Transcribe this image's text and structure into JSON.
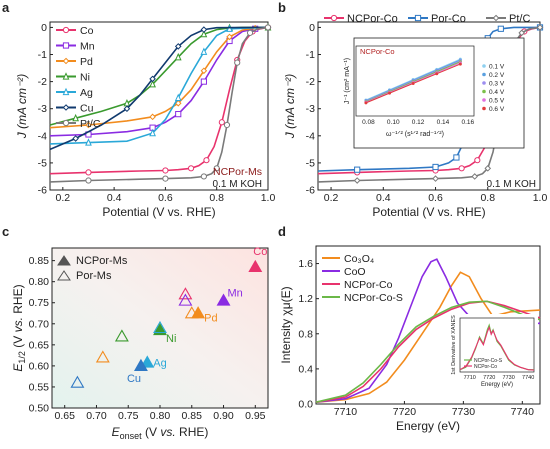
{
  "panel_labels": [
    "a",
    "b",
    "c",
    "d"
  ],
  "chart_data": [
    {
      "panel": "a",
      "type": "line",
      "xlabel": "Potential (V vs. RHE)",
      "ylabel": "J (mA cm⁻²)",
      "xlim": [
        0.15,
        1.0
      ],
      "ylim": [
        -6,
        0.2
      ],
      "xticks": [
        "0.2",
        "0.4",
        "0.6",
        "0.8",
        "1.0"
      ],
      "yticks": [
        "0",
        "-1",
        "-2",
        "-3",
        "-4",
        "-5",
        "-6"
      ],
      "legend_position": "top-left",
      "annotations": [
        "NCPor-Ms",
        "0.1 M KOH"
      ],
      "series": [
        {
          "name": "Co",
          "color": "#e8336d",
          "x": [
            0.15,
            0.3,
            0.5,
            0.6,
            0.65,
            0.7,
            0.73,
            0.76,
            0.79,
            0.82,
            0.85,
            0.88,
            0.91,
            0.94,
            0.97,
            1.0
          ],
          "y": [
            -5.4,
            -5.35,
            -5.3,
            -5.28,
            -5.25,
            -5.2,
            -5.1,
            -4.9,
            -4.4,
            -3.5,
            -2.3,
            -1.2,
            -0.5,
            -0.15,
            -0.05,
            0
          ]
        },
        {
          "name": "Mn",
          "color": "#8a2be2",
          "x": [
            0.15,
            0.3,
            0.45,
            0.55,
            0.6,
            0.65,
            0.7,
            0.75,
            0.8,
            0.85,
            0.9,
            0.95,
            1.0
          ],
          "y": [
            -4.0,
            -3.95,
            -3.85,
            -3.7,
            -3.5,
            -3.2,
            -2.7,
            -2.0,
            -1.2,
            -0.5,
            -0.15,
            -0.05,
            0
          ]
        },
        {
          "name": "Pd",
          "color": "#f28c1e",
          "x": [
            0.15,
            0.3,
            0.45,
            0.55,
            0.6,
            0.65,
            0.7,
            0.75,
            0.8,
            0.85,
            0.9,
            0.95,
            1.0
          ],
          "y": [
            -3.7,
            -3.6,
            -3.45,
            -3.3,
            -3.1,
            -2.8,
            -2.3,
            -1.6,
            -0.9,
            -0.35,
            -0.1,
            -0.03,
            0
          ]
        },
        {
          "name": "Ni",
          "color": "#3a9a2e",
          "x": [
            0.15,
            0.25,
            0.35,
            0.45,
            0.5,
            0.55,
            0.6,
            0.65,
            0.7,
            0.75,
            0.8,
            0.85,
            0.9,
            1.0
          ],
          "y": [
            -3.6,
            -3.35,
            -3.1,
            -2.8,
            -2.5,
            -2.1,
            -1.6,
            -1.1,
            -0.6,
            -0.25,
            -0.08,
            -0.02,
            0,
            0
          ]
        },
        {
          "name": "Ag",
          "color": "#2aa8d8",
          "x": [
            0.15,
            0.3,
            0.45,
            0.55,
            0.6,
            0.65,
            0.7,
            0.75,
            0.8,
            0.85,
            1.0
          ],
          "y": [
            -4.3,
            -4.25,
            -4.2,
            -3.9,
            -3.4,
            -2.6,
            -1.7,
            -0.9,
            -0.3,
            -0.05,
            0
          ]
        },
        {
          "name": "Cu",
          "color": "#103a6e",
          "x": [
            0.15,
            0.25,
            0.35,
            0.45,
            0.5,
            0.55,
            0.6,
            0.65,
            0.7,
            0.75,
            0.8,
            1.0
          ],
          "y": [
            -4.5,
            -4.1,
            -3.6,
            -3.0,
            -2.5,
            -1.9,
            -1.3,
            -0.7,
            -0.3,
            -0.08,
            -0.01,
            0
          ]
        },
        {
          "name": "Pt/C",
          "color": "#7a7a7a",
          "x": [
            0.15,
            0.3,
            0.5,
            0.6,
            0.7,
            0.75,
            0.78,
            0.8,
            0.82,
            0.84,
            0.86,
            0.88,
            0.9,
            0.93,
            0.96,
            1.0
          ],
          "y": [
            -5.7,
            -5.65,
            -5.6,
            -5.58,
            -5.55,
            -5.5,
            -5.4,
            -5.2,
            -4.6,
            -3.6,
            -2.4,
            -1.3,
            -0.6,
            -0.2,
            -0.05,
            0
          ]
        }
      ]
    },
    {
      "panel": "b",
      "type": "line",
      "xlabel": "Potential (V vs. RHE)",
      "ylabel": "J (mA cm⁻²)",
      "xlim": [
        0.15,
        1.0
      ],
      "ylim": [
        -6,
        0.2
      ],
      "xticks": [
        "0.2",
        "0.4",
        "0.6",
        "0.8",
        "1.0"
      ],
      "yticks": [
        "0",
        "-1",
        "-2",
        "-3",
        "-4",
        "-5",
        "-6"
      ],
      "legend_position": "top",
      "annotations": [
        "0.1 M KOH"
      ],
      "series": [
        {
          "name": "NCPor-Co",
          "color": "#e8336d",
          "x": [
            0.15,
            0.3,
            0.5,
            0.6,
            0.65,
            0.7,
            0.73,
            0.76,
            0.79,
            0.82,
            0.85,
            0.88,
            0.91,
            0.94,
            0.97,
            1.0
          ],
          "y": [
            -5.4,
            -5.35,
            -5.3,
            -5.28,
            -5.25,
            -5.2,
            -5.1,
            -4.9,
            -4.4,
            -3.5,
            -2.3,
            -1.2,
            -0.5,
            -0.15,
            -0.05,
            0
          ]
        },
        {
          "name": "Por-Co",
          "color": "#2f78c4",
          "x": [
            0.15,
            0.3,
            0.5,
            0.6,
            0.65,
            0.68,
            0.7,
            0.72,
            0.74,
            0.76,
            0.78,
            0.8,
            0.82,
            0.85,
            0.9,
            1.0
          ],
          "y": [
            -5.3,
            -5.25,
            -5.2,
            -5.15,
            -5.0,
            -4.8,
            -4.4,
            -3.7,
            -2.7,
            -1.7,
            -0.9,
            -0.4,
            -0.15,
            -0.05,
            0,
            0
          ]
        },
        {
          "name": "Pt/C",
          "color": "#7a7a7a",
          "x": [
            0.15,
            0.3,
            0.5,
            0.6,
            0.7,
            0.75,
            0.78,
            0.8,
            0.82,
            0.84,
            0.86,
            0.88,
            0.9,
            0.93,
            0.96,
            1.0
          ],
          "y": [
            -5.7,
            -5.65,
            -5.6,
            -5.58,
            -5.55,
            -5.5,
            -5.4,
            -5.2,
            -4.6,
            -3.6,
            -2.4,
            -1.3,
            -0.6,
            -0.2,
            -0.05,
            0
          ]
        }
      ],
      "inset": {
        "type": "line",
        "title": "NCPor-Co",
        "xlabel": "ω⁻¹ᐟ² (s¹ᐟ² rad⁻¹ᐟ²)",
        "ylabel": "J⁻¹ (cm² mA⁻¹)",
        "xlim": [
          0.07,
          0.165
        ],
        "ylim": [
          0.14,
          0.38
        ],
        "xticks": [
          "0.08",
          "0.10",
          "0.12",
          "0.14",
          "0.16"
        ],
        "legend_position": "right",
        "series": [
          {
            "name": "0.1 V",
            "color": "#8fd0f0",
            "x": [
              0.078,
              0.154
            ],
            "y": [
              0.195,
              0.335
            ]
          },
          {
            "name": "0.2 V",
            "color": "#5aa0e0",
            "x": [
              0.078,
              0.154
            ],
            "y": [
              0.193,
              0.332
            ]
          },
          {
            "name": "0.3 V",
            "color": "#9d8ef0",
            "x": [
              0.078,
              0.154
            ],
            "y": [
              0.191,
              0.329
            ]
          },
          {
            "name": "0.4 V",
            "color": "#7cc04a",
            "x": [
              0.078,
              0.154
            ],
            "y": [
              0.189,
              0.326
            ]
          },
          {
            "name": "0.5 V",
            "color": "#e070e0",
            "x": [
              0.078,
              0.154
            ],
            "y": [
              0.187,
              0.322
            ]
          },
          {
            "name": "0.6 V",
            "color": "#e23c3c",
            "x": [
              0.078,
              0.154
            ],
            "y": [
              0.185,
              0.318
            ]
          }
        ]
      }
    },
    {
      "panel": "c",
      "type": "scatter",
      "xlabel": "E_onset (V vs. RHE)",
      "ylabel": "E_1/2 (V vs. RHE)",
      "xlim": [
        0.63,
        0.97
      ],
      "ylim": [
        0.5,
        0.88
      ],
      "xticks": [
        "0.65",
        "0.70",
        "0.75",
        "0.80",
        "0.85",
        "0.90",
        "0.95"
      ],
      "yticks": [
        "0.50",
        "0.55",
        "0.60",
        "0.65",
        "0.70",
        "0.75",
        "0.80",
        "0.85"
      ],
      "legend_position": "top-left",
      "legend": [
        "NCPor-Ms",
        "Por-Ms"
      ],
      "points": [
        {
          "label": "Co",
          "x": 0.95,
          "y": 0.835,
          "filled": true,
          "color": "#e8336d"
        },
        {
          "label": "Mn",
          "x": 0.9,
          "y": 0.755,
          "filled": true,
          "color": "#8a2be2"
        },
        {
          "label": "Pd",
          "x": 0.86,
          "y": 0.725,
          "filled": true,
          "color": "#f28c1e"
        },
        {
          "label": "Ni",
          "x": 0.8,
          "y": 0.685,
          "filled": true,
          "color": "#3a9a2e"
        },
        {
          "label": "Ag",
          "x": 0.78,
          "y": 0.608,
          "filled": true,
          "color": "#2aa8d8"
        },
        {
          "label": "Cu",
          "x": 0.77,
          "y": 0.6,
          "filled": true,
          "color": "#2f78c4"
        },
        {
          "label": "",
          "x": 0.84,
          "y": 0.77,
          "filled": false,
          "color": "#e8336d"
        },
        {
          "label": "",
          "x": 0.84,
          "y": 0.755,
          "filled": false,
          "color": "#8a2be2"
        },
        {
          "label": "",
          "x": 0.85,
          "y": 0.725,
          "filled": false,
          "color": "#f28c1e"
        },
        {
          "label": "",
          "x": 0.8,
          "y": 0.69,
          "filled": false,
          "color": "#2aa8d8"
        },
        {
          "label": "",
          "x": 0.74,
          "y": 0.67,
          "filled": false,
          "color": "#3a9a2e"
        },
        {
          "label": "",
          "x": 0.71,
          "y": 0.62,
          "filled": false,
          "color": "#f28c1e"
        },
        {
          "label": "",
          "x": 0.67,
          "y": 0.56,
          "filled": false,
          "color": "#2f78c4"
        }
      ]
    },
    {
      "panel": "d",
      "type": "line",
      "xlabel": "Energy (eV)",
      "ylabel": "Intensity χμ(E)",
      "xlim": [
        7705,
        7743
      ],
      "ylim": [
        0,
        1.8
      ],
      "xticks": [
        "7710",
        "7720",
        "7730",
        "7740"
      ],
      "yticks": [
        "0.0",
        "0.4",
        "0.8",
        "1.2",
        "1.6"
      ],
      "legend_position": "top-left",
      "series": [
        {
          "name": "Co₃O₄",
          "color": "#f28c1e",
          "x": [
            7705,
            7710,
            7714,
            7717,
            7720,
            7723,
            7726,
            7728,
            7729.5,
            7731,
            7733,
            7735,
            7738,
            7743
          ],
          "y": [
            0.02,
            0.05,
            0.12,
            0.25,
            0.5,
            0.8,
            1.1,
            1.35,
            1.5,
            1.45,
            1.2,
            1.0,
            1.05,
            1.07
          ]
        },
        {
          "name": "CoO",
          "color": "#8a2be2",
          "x": [
            7705,
            7710,
            7714,
            7717,
            7719,
            7721,
            7723,
            7724.5,
            7725.5,
            7727,
            7729,
            7731,
            7734,
            7737,
            7740,
            7743
          ],
          "y": [
            0.02,
            0.06,
            0.18,
            0.45,
            0.75,
            1.1,
            1.45,
            1.62,
            1.65,
            1.45,
            1.15,
            1.0,
            0.9,
            0.88,
            0.9,
            0.92
          ]
        },
        {
          "name": "NCPor-Co",
          "color": "#e8336d",
          "x": [
            7705,
            7710,
            7713,
            7716,
            7719,
            7722,
            7725,
            7728,
            7731,
            7734,
            7737,
            7740,
            7743
          ],
          "y": [
            0.02,
            0.08,
            0.2,
            0.4,
            0.65,
            0.85,
            0.98,
            1.08,
            1.15,
            1.17,
            1.12,
            1.05,
            0.98
          ]
        },
        {
          "name": "NCPor-Co-S",
          "color": "#6bb848",
          "x": [
            7705,
            7710,
            7713,
            7716,
            7719,
            7722,
            7725,
            7728,
            7731,
            7734,
            7737,
            7740,
            7743
          ],
          "y": [
            0.02,
            0.1,
            0.24,
            0.45,
            0.68,
            0.88,
            1.0,
            1.1,
            1.16,
            1.17,
            1.1,
            1.02,
            0.96
          ]
        }
      ],
      "inset": {
        "type": "line",
        "xlabel": "Energy (eV)",
        "ylabel": "1st Derivative of XANES",
        "xlim": [
          7705,
          7743
        ],
        "xticks": [
          "7710",
          "7720",
          "7730",
          "7740"
        ],
        "legend_position": "bottom",
        "series": [
          {
            "name": "NCPor-Co-S",
            "color": "#6bb848",
            "x": [
              7705,
              7708,
              7711,
              7713,
              7715,
              7717,
              7719,
              7720,
              7721,
              7722,
              7724,
              7726,
              7728,
              7730,
              7733,
              7736,
              7740,
              7743
            ],
            "y": [
              0.05,
              0.1,
              0.3,
              0.5,
              0.75,
              0.6,
              0.9,
              1.0,
              0.82,
              0.9,
              0.65,
              0.55,
              0.4,
              0.25,
              0.15,
              0.1,
              0.05,
              0.05
            ]
          },
          {
            "name": "NCPor-Co",
            "color": "#e8336d",
            "x": [
              7705,
              7708,
              7711,
              7713,
              7715,
              7717,
              7719,
              7720,
              7721,
              7722,
              7724,
              7726,
              7728,
              7730,
              7733,
              7736,
              7740,
              7743
            ],
            "y": [
              0.05,
              0.12,
              0.32,
              0.52,
              0.72,
              0.58,
              0.85,
              0.95,
              0.8,
              0.88,
              0.68,
              0.57,
              0.42,
              0.27,
              0.16,
              0.1,
              0.05,
              0.04
            ]
          }
        ]
      }
    }
  ]
}
